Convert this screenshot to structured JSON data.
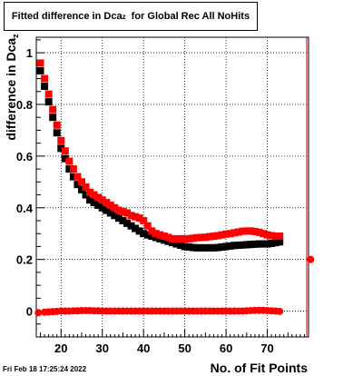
{
  "title": {
    "prefix": "Fitted difference in Dca",
    "sub": "z",
    "suffix": "  for Global Rec All NoHits"
  },
  "ylabel": {
    "prefix": "difference in Dca",
    "sub": "z"
  },
  "xlabel": "No. of Fit Points",
  "timestamp": "Fri Feb 18 17:25:24 2022",
  "chart_data": {
    "type": "scatter",
    "xlim": [
      14,
      80
    ],
    "ylim": [
      -0.1,
      1.06
    ],
    "x_ticks": [
      20,
      30,
      40,
      50,
      60,
      70
    ],
    "y_ticks": [
      0,
      0.2,
      0.4,
      0.6,
      0.8,
      1
    ],
    "y_tick_labels": [
      "0",
      "0.2",
      "0.4",
      "0.6",
      "0.8",
      "1"
    ],
    "grid": true,
    "series": [
      {
        "color": "#000000",
        "marker": "square",
        "x": [
          15,
          16,
          17,
          18,
          19,
          20,
          21,
          22,
          23,
          24,
          25,
          26,
          27,
          28,
          29,
          30,
          31,
          32,
          33,
          34,
          35,
          36,
          37,
          38,
          39,
          40,
          41,
          42,
          43,
          44,
          45,
          46,
          47,
          48,
          49,
          50,
          51,
          52,
          53,
          54,
          55,
          56,
          57,
          58,
          59,
          60,
          61,
          62,
          63,
          64,
          65,
          66,
          67,
          68,
          69,
          70,
          71,
          72,
          73
        ],
        "y": [
          0.93,
          0.87,
          0.81,
          0.75,
          0.69,
          0.63,
          0.59,
          0.55,
          0.52,
          0.49,
          0.47,
          0.45,
          0.43,
          0.42,
          0.41,
          0.4,
          0.39,
          0.38,
          0.37,
          0.36,
          0.35,
          0.34,
          0.33,
          0.32,
          0.31,
          0.3,
          0.295,
          0.29,
          0.285,
          0.28,
          0.275,
          0.27,
          0.265,
          0.26,
          0.255,
          0.25,
          0.248,
          0.246,
          0.245,
          0.245,
          0.245,
          0.245,
          0.245,
          0.246,
          0.248,
          0.25,
          0.252,
          0.254,
          0.255,
          0.256,
          0.257,
          0.258,
          0.259,
          0.26,
          0.26,
          0.26,
          0.262,
          0.265,
          0.268
        ]
      },
      {
        "color": "#ff0000",
        "marker": "square",
        "x": [
          15,
          16,
          17,
          18,
          19,
          20,
          21,
          22,
          23,
          24,
          25,
          26,
          27,
          28,
          29,
          30,
          31,
          32,
          33,
          34,
          35,
          36,
          37,
          38,
          39,
          40,
          41,
          42,
          43,
          44,
          45,
          46,
          47,
          48,
          49,
          50,
          51,
          52,
          53,
          54,
          55,
          56,
          57,
          58,
          59,
          60,
          61,
          62,
          63,
          64,
          65,
          66,
          67,
          68,
          69,
          70,
          71,
          72,
          73
        ],
        "y": [
          0.96,
          0.9,
          0.84,
          0.78,
          0.72,
          0.66,
          0.62,
          0.58,
          0.55,
          0.52,
          0.5,
          0.48,
          0.46,
          0.45,
          0.44,
          0.43,
          0.42,
          0.41,
          0.4,
          0.39,
          0.385,
          0.38,
          0.37,
          0.365,
          0.36,
          0.35,
          0.33,
          0.31,
          0.3,
          0.295,
          0.29,
          0.285,
          0.28,
          0.28,
          0.28,
          0.28,
          0.28,
          0.282,
          0.284,
          0.285,
          0.286,
          0.288,
          0.29,
          0.292,
          0.295,
          0.298,
          0.3,
          0.303,
          0.306,
          0.309,
          0.31,
          0.31,
          0.308,
          0.305,
          0.3,
          0.295,
          0.292,
          0.29,
          0.29
        ]
      },
      {
        "color": "#ff0000",
        "marker": "circle",
        "x": [
          14.5,
          16,
          17,
          18,
          19,
          20,
          21,
          22,
          23,
          24,
          25,
          26,
          27,
          28,
          29,
          30,
          31,
          32,
          33,
          34,
          35,
          36,
          37,
          38,
          39,
          40,
          41,
          42,
          43,
          44,
          45,
          46,
          47,
          48,
          49,
          50,
          51,
          52,
          53,
          54,
          55,
          56,
          57,
          58,
          59,
          60,
          61,
          62,
          63,
          64,
          65,
          66,
          67,
          68,
          69,
          70,
          71,
          72,
          73
        ],
        "y": [
          -0.006,
          -0.004,
          -0.003,
          -0.002,
          -0.001,
          0,
          0,
          0,
          0.001,
          0.001,
          0.002,
          0.002,
          0.002,
          0.001,
          0.001,
          0,
          0,
          0,
          0,
          0,
          0,
          0,
          0,
          0,
          0,
          0,
          0,
          0,
          0,
          0,
          0,
          0,
          0,
          0,
          0,
          0,
          0,
          0,
          0,
          0,
          0,
          0,
          0,
          0,
          0,
          0,
          0,
          0,
          0,
          0,
          0.001,
          0.002,
          0.003,
          0.003,
          0.003,
          0.002,
          0.001,
          0,
          -0.001
        ]
      },
      {
        "color": "#ff0000",
        "marker": "circle",
        "x": [
          80.5
        ],
        "y": [
          0.2
        ]
      }
    ]
  }
}
